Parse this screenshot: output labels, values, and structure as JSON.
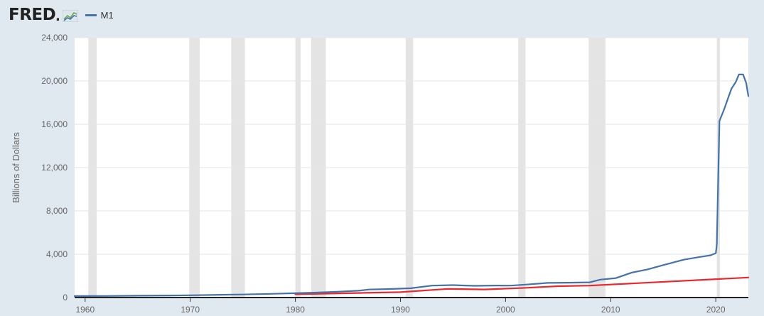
{
  "header": {
    "logo_text": "FRED",
    "logo_dot": ".",
    "logo_icon": "line-chart-icon"
  },
  "chart_data": {
    "type": "line",
    "title": "",
    "xlabel": "",
    "ylabel": "Billions of Dollars",
    "xlim": [
      1959.0,
      2023.1
    ],
    "ylim": [
      0,
      24000
    ],
    "x_ticks": [
      "1960",
      "1970",
      "1980",
      "1990",
      "2000",
      "2010",
      "2020"
    ],
    "y_ticks": [
      "0",
      "4,000",
      "8,000",
      "12,000",
      "16,000",
      "20,000",
      "24,000"
    ],
    "grid": true,
    "legend": "top-left",
    "recessions": [
      [
        1960.3,
        1961.1
      ],
      [
        1969.9,
        1970.9
      ],
      [
        1973.9,
        1975.2
      ],
      [
        1980.0,
        1980.5
      ],
      [
        1981.5,
        1982.9
      ],
      [
        1990.5,
        1991.2
      ],
      [
        2001.2,
        2001.9
      ],
      [
        2007.9,
        2009.5
      ],
      [
        2020.1,
        2020.4
      ]
    ],
    "series": [
      {
        "name": "M1",
        "color": "#4572a7",
        "points": [
          [
            1959.0,
            140
          ],
          [
            1962.0,
            147
          ],
          [
            1965.0,
            168
          ],
          [
            1968.0,
            190
          ],
          [
            1970.0,
            212
          ],
          [
            1973.0,
            255
          ],
          [
            1975.0,
            285
          ],
          [
            1978.0,
            345
          ],
          [
            1980.0,
            400
          ],
          [
            1982.0,
            460
          ],
          [
            1984.0,
            540
          ],
          [
            1986.0,
            630
          ],
          [
            1987.0,
            740
          ],
          [
            1989.0,
            785
          ],
          [
            1991.0,
            860
          ],
          [
            1993.0,
            1100
          ],
          [
            1995.0,
            1150
          ],
          [
            1997.0,
            1080
          ],
          [
            1999.0,
            1110
          ],
          [
            2000.5,
            1100
          ],
          [
            2002.0,
            1200
          ],
          [
            2004.0,
            1350
          ],
          [
            2006.0,
            1370
          ],
          [
            2008.0,
            1400
          ],
          [
            2009.0,
            1650
          ],
          [
            2010.5,
            1800
          ],
          [
            2012.0,
            2300
          ],
          [
            2013.5,
            2600
          ],
          [
            2015.0,
            3000
          ],
          [
            2017.0,
            3500
          ],
          [
            2018.5,
            3750
          ],
          [
            2019.5,
            3900
          ],
          [
            2020.0,
            4100
          ],
          [
            2020.1,
            4900
          ],
          [
            2020.35,
            16300
          ],
          [
            2020.8,
            17400
          ],
          [
            2021.2,
            18500
          ],
          [
            2021.5,
            19300
          ],
          [
            2021.9,
            19900
          ],
          [
            2022.2,
            20600
          ],
          [
            2022.6,
            20600
          ],
          [
            2022.9,
            19800
          ],
          [
            2023.1,
            18600
          ]
        ]
      },
      {
        "name": "",
        "color": "#e8282e",
        "points": [
          [
            1980.0,
            300
          ],
          [
            1990.0,
            500
          ],
          [
            1994.5,
            800
          ],
          [
            1998.0,
            750
          ],
          [
            2002.0,
            900
          ],
          [
            2005.0,
            1050
          ],
          [
            2008.0,
            1100
          ],
          [
            2023.1,
            1850
          ]
        ]
      }
    ]
  }
}
